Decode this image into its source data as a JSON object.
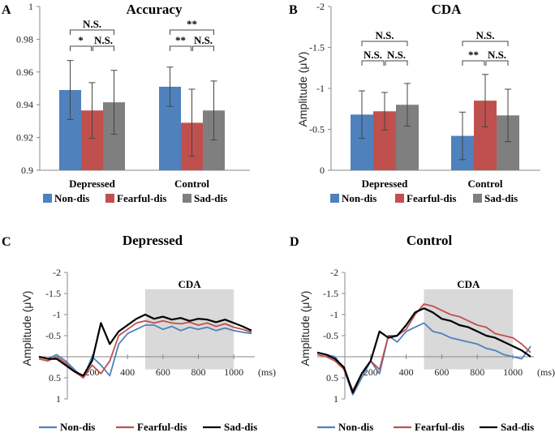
{
  "colors": {
    "non_dis": "#4f81bd",
    "fearful_dis": "#c0504d",
    "sad_dis": "#7f7f7f",
    "black": "#000000",
    "shade": "#d9d9d9"
  },
  "legend_bar": [
    "Non-dis",
    "Fearful-dis",
    "Sad-dis"
  ],
  "legend_line": [
    "Non-dis",
    "Fearful-dis",
    "Sad-dis"
  ],
  "chart_data": [
    {
      "panel": "A",
      "type": "bar",
      "title": "Accuracy",
      "categories": [
        "Depressed",
        "Control"
      ],
      "ylim": [
        0.9,
        1.0
      ],
      "yticks": [
        "1",
        "0.98",
        "0.96",
        "0.94",
        "0.92",
        "0.9"
      ],
      "ylabel": "",
      "series": [
        {
          "name": "Non-dis",
          "values": [
            0.949,
            0.951
          ],
          "errors": [
            0.018,
            0.012
          ]
        },
        {
          "name": "Fearful-dis",
          "values": [
            0.9365,
            0.929
          ],
          "errors": [
            0.017,
            0.0205
          ]
        },
        {
          "name": "Sad-dis",
          "values": [
            0.9415,
            0.9365
          ],
          "errors": [
            0.0195,
            0.018
          ]
        }
      ],
      "annotations": [
        {
          "group": "Depressed",
          "label": "N.S.",
          "pair": "Non-dis vs Sad-dis"
        },
        {
          "group": "Depressed",
          "label": "*",
          "pair": "Non-dis vs Fearful-dis"
        },
        {
          "group": "Depressed",
          "label": "N.S.",
          "pair": "Fearful-dis vs Sad-dis"
        },
        {
          "group": "Control",
          "label": "**",
          "pair": "Non-dis vs Sad-dis"
        },
        {
          "group": "Control",
          "label": "**",
          "pair": "Non-dis vs Fearful-dis"
        },
        {
          "group": "Control",
          "label": "N.S.",
          "pair": "Fearful-dis vs Sad-dis"
        }
      ]
    },
    {
      "panel": "B",
      "type": "bar",
      "title": "CDA",
      "categories": [
        "Depressed",
        "Control"
      ],
      "ylim": [
        0,
        -2
      ],
      "yticks": [
        "-2",
        "-1.5",
        "-1",
        "-0.5",
        "0"
      ],
      "ylabel": "Amplitude (μV)",
      "series": [
        {
          "name": "Non-dis",
          "values": [
            -0.68,
            -0.42
          ],
          "errors": [
            0.29,
            0.29
          ]
        },
        {
          "name": "Fearful-dis",
          "values": [
            -0.72,
            -0.85
          ],
          "errors": [
            0.23,
            0.32
          ]
        },
        {
          "name": "Sad-dis",
          "values": [
            -0.8,
            -0.67
          ],
          "errors": [
            0.26,
            0.32
          ]
        }
      ],
      "annotations": [
        {
          "group": "Depressed",
          "label": "N.S.",
          "pair": "Non-dis vs Sad-dis"
        },
        {
          "group": "Depressed",
          "label": "N.S.",
          "pair": "Non-dis vs Fearful-dis"
        },
        {
          "group": "Depressed",
          "label": "N.S.",
          "pair": "Fearful-dis vs Sad-dis"
        },
        {
          "group": "Control",
          "label": "N.S.",
          "pair": "Non-dis vs Sad-dis"
        },
        {
          "group": "Control",
          "label": "**",
          "pair": "Non-dis vs Fearful-dis"
        },
        {
          "group": "Control",
          "label": "N.S.",
          "pair": "Fearful-dis vs Sad-dis"
        }
      ]
    },
    {
      "panel": "C",
      "type": "line",
      "title": "Depressed",
      "xlim": [
        -100,
        1100
      ],
      "xticks": [
        "200",
        "400",
        "600",
        "800",
        "1000"
      ],
      "xunit": "(ms)",
      "ylim": [
        1.0,
        -2.0
      ],
      "yticks": [
        "-2",
        "-1.5",
        "-1",
        "-0.5",
        "0.5",
        "1"
      ],
      "ylabel": "Amplitude (μV)",
      "window_label": "CDA",
      "window": [
        500,
        1000
      ],
      "x": [
        -100,
        -50,
        0,
        50,
        100,
        150,
        200,
        250,
        300,
        350,
        400,
        450,
        500,
        550,
        600,
        650,
        700,
        750,
        800,
        850,
        900,
        950,
        1000,
        1050,
        1100
      ],
      "series": [
        {
          "name": "Non-dis",
          "values": [
            0.0,
            0.05,
            -0.05,
            0.1,
            0.3,
            0.5,
            0.0,
            0.2,
            0.45,
            -0.3,
            -0.55,
            -0.65,
            -0.75,
            -0.75,
            -0.65,
            -0.72,
            -0.62,
            -0.7,
            -0.65,
            -0.7,
            -0.62,
            -0.68,
            -0.62,
            -0.58,
            -0.55
          ]
        },
        {
          "name": "Fearful-dis",
          "values": [
            0.05,
            0.1,
            0.0,
            0.15,
            0.35,
            0.5,
            0.2,
            0.4,
            0.1,
            -0.5,
            -0.65,
            -0.8,
            -0.85,
            -0.8,
            -0.85,
            -0.8,
            -0.78,
            -0.82,
            -0.75,
            -0.8,
            -0.72,
            -0.78,
            -0.7,
            -0.65,
            -0.58
          ]
        },
        {
          "name": "Sad-dis",
          "values": [
            0.0,
            0.05,
            0.05,
            0.2,
            0.35,
            0.45,
            0.1,
            -0.8,
            -0.3,
            -0.6,
            -0.75,
            -0.9,
            -1.0,
            -0.9,
            -0.95,
            -0.88,
            -0.92,
            -0.85,
            -0.9,
            -0.88,
            -0.82,
            -0.88,
            -0.8,
            -0.72,
            -0.62
          ]
        }
      ]
    },
    {
      "panel": "D",
      "type": "line",
      "title": "Control",
      "xlim": [
        -100,
        1100
      ],
      "xticks": [
        "200",
        "400",
        "600",
        "800",
        "1000"
      ],
      "xunit": "(ms)",
      "ylim": [
        1.0,
        -2.0
      ],
      "yticks": [
        "-2",
        "-1.5",
        "-1",
        "-0.5",
        "0.5",
        "1"
      ],
      "ylabel": "Amplitude (μV)",
      "window_label": "CDA",
      "window": [
        500,
        1000
      ],
      "x": [
        -100,
        -50,
        0,
        50,
        100,
        150,
        200,
        250,
        300,
        350,
        400,
        450,
        500,
        550,
        600,
        650,
        700,
        750,
        800,
        850,
        900,
        950,
        1000,
        1050,
        1100
      ],
      "series": [
        {
          "name": "Non-dis",
          "values": [
            -0.1,
            -0.05,
            0.0,
            0.3,
            0.9,
            0.5,
            0.1,
            0.4,
            -0.5,
            -0.35,
            -0.6,
            -0.7,
            -0.8,
            -0.6,
            -0.55,
            -0.45,
            -0.4,
            -0.35,
            -0.3,
            -0.2,
            -0.15,
            -0.05,
            0.0,
            0.05,
            -0.25
          ]
        },
        {
          "name": "Fearful-dis",
          "values": [
            -0.05,
            0.0,
            0.1,
            0.3,
            0.8,
            0.4,
            0.1,
            0.3,
            -0.5,
            -0.5,
            -0.65,
            -1.0,
            -1.25,
            -1.2,
            -1.1,
            -1.0,
            -0.95,
            -0.85,
            -0.75,
            -0.7,
            -0.55,
            -0.5,
            -0.45,
            -0.3,
            -0.1
          ]
        },
        {
          "name": "Sad-dis",
          "values": [
            -0.1,
            -0.05,
            0.05,
            0.25,
            0.85,
            0.4,
            0.1,
            -0.6,
            -0.45,
            -0.5,
            -0.75,
            -1.05,
            -1.15,
            -1.05,
            -0.9,
            -0.85,
            -0.75,
            -0.7,
            -0.6,
            -0.5,
            -0.45,
            -0.35,
            -0.25,
            -0.15,
            0.0
          ]
        }
      ]
    }
  ]
}
